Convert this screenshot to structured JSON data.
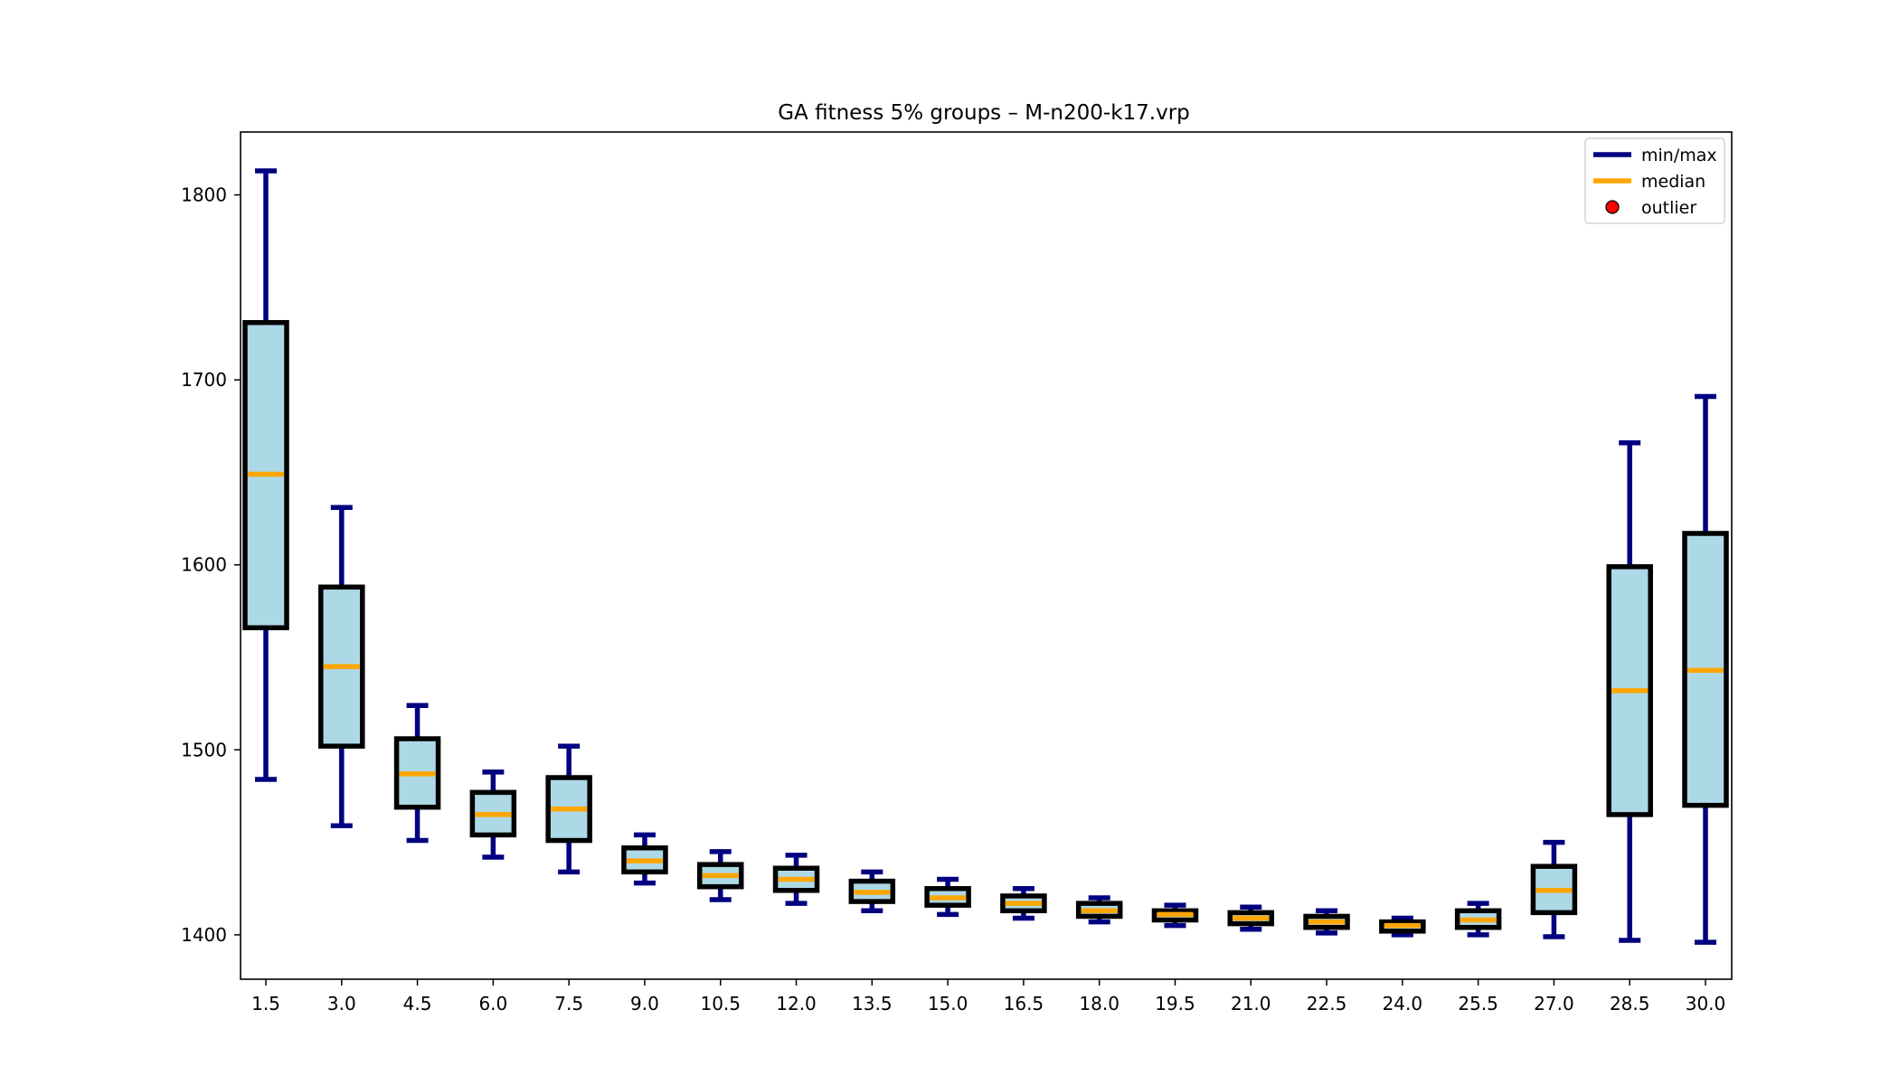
{
  "chart_data": {
    "type": "box",
    "title": "GA fitness 5% groups – M-n200-k17.vrp",
    "xlabel": "",
    "ylabel": "",
    "categories": [
      "1.5",
      "3.0",
      "4.5",
      "6.0",
      "7.5",
      "9.0",
      "10.5",
      "12.0",
      "13.5",
      "15.0",
      "16.5",
      "18.0",
      "19.5",
      "21.0",
      "22.5",
      "24.0",
      "25.5",
      "27.0",
      "28.5",
      "30.0"
    ],
    "boxes": [
      {
        "min": 1484,
        "q1": 1566,
        "median": 1649,
        "q3": 1731,
        "max": 1813
      },
      {
        "min": 1459,
        "q1": 1502,
        "median": 1545,
        "q3": 1588,
        "max": 1631
      },
      {
        "min": 1451,
        "q1": 1469,
        "median": 1487,
        "q3": 1506,
        "max": 1524
      },
      {
        "min": 1442,
        "q1": 1454,
        "median": 1465,
        "q3": 1477,
        "max": 1488
      },
      {
        "min": 1434,
        "q1": 1451,
        "median": 1468,
        "q3": 1485,
        "max": 1502
      },
      {
        "min": 1428,
        "q1": 1434,
        "median": 1440,
        "q3": 1447,
        "max": 1454
      },
      {
        "min": 1419,
        "q1": 1426,
        "median": 1432,
        "q3": 1438,
        "max": 1445
      },
      {
        "min": 1417,
        "q1": 1424,
        "median": 1430,
        "q3": 1436,
        "max": 1443
      },
      {
        "min": 1413,
        "q1": 1418,
        "median": 1423,
        "q3": 1429,
        "max": 1434
      },
      {
        "min": 1411,
        "q1": 1416,
        "median": 1420,
        "q3": 1425,
        "max": 1430
      },
      {
        "min": 1409,
        "q1": 1413,
        "median": 1417,
        "q3": 1421,
        "max": 1425
      },
      {
        "min": 1407,
        "q1": 1410,
        "median": 1413,
        "q3": 1417,
        "max": 1420
      },
      {
        "min": 1405,
        "q1": 1408,
        "median": 1411,
        "q3": 1413,
        "max": 1416
      },
      {
        "min": 1403,
        "q1": 1406,
        "median": 1409,
        "q3": 1412,
        "max": 1415
      },
      {
        "min": 1401,
        "q1": 1404,
        "median": 1407,
        "q3": 1410,
        "max": 1413
      },
      {
        "min": 1400,
        "q1": 1402,
        "median": 1405,
        "q3": 1407,
        "max": 1409
      },
      {
        "min": 1400,
        "q1": 1404,
        "median": 1408,
        "q3": 1413,
        "max": 1417
      },
      {
        "min": 1399,
        "q1": 1412,
        "median": 1424,
        "q3": 1437,
        "max": 1450
      },
      {
        "min": 1397,
        "q1": 1465,
        "median": 1532,
        "q3": 1599,
        "max": 1666
      },
      {
        "min": 1396,
        "q1": 1470,
        "median": 1543,
        "q3": 1617,
        "max": 1691
      }
    ],
    "outliers": [],
    "yticks": [
      "1400",
      "1500",
      "1600",
      "1700",
      "1800"
    ],
    "ylim": [
      1376,
      1834
    ],
    "grid": false,
    "legend": {
      "placement": "top-right",
      "entries": [
        {
          "label": "min/max",
          "marker": "line",
          "color": "#000080"
        },
        {
          "label": "median",
          "marker": "line",
          "color": "#ffa500"
        },
        {
          "label": "outlier",
          "marker": "dot",
          "color": "#ff0000"
        }
      ]
    },
    "colors": {
      "box_fill": "#add8e6",
      "box_edge": "#000000",
      "whisker": "#000080",
      "median": "#ffa500",
      "outlier": "#ff0000"
    }
  }
}
